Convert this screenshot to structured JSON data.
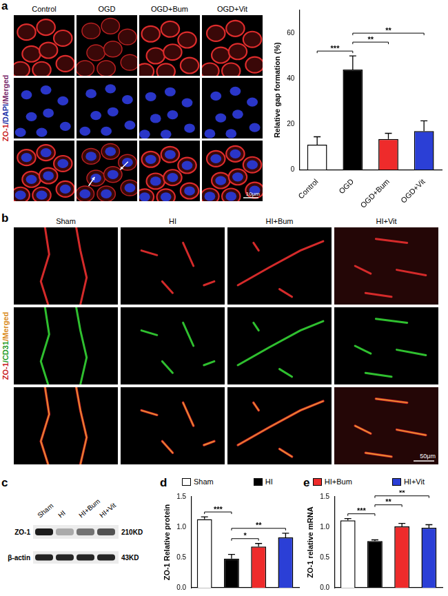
{
  "figure": {
    "panel_a": {
      "label": "a",
      "columns": [
        "Control",
        "OGD",
        "OGD+Bum",
        "OGD+Vit"
      ],
      "stain_label": [
        {
          "text": "ZO-1",
          "color": "#c8201e"
        },
        {
          "text": "/DAPI",
          "color": "#2233aa"
        },
        {
          "text": "/Merged",
          "color": "#7a2c6c"
        }
      ],
      "scale_bar": "10μm"
    },
    "panel_b": {
      "label": "b",
      "columns": [
        "Sham",
        "HI",
        "HI+Bum",
        "HI+Vit"
      ],
      "stain_label": [
        {
          "text": "ZO-1",
          "color": "#c8201e"
        },
        {
          "text": "/CD31",
          "color": "#1f9a1f"
        },
        {
          "text": "/Merged",
          "color": "#d98a20"
        }
      ],
      "scale_bar": "50μm"
    },
    "panel_c": {
      "label": "c",
      "lanes": [
        "Sham",
        "HI",
        "HI+Bum",
        "HI+Vit"
      ],
      "rows": [
        {
          "name": "ZO-1",
          "size": "210KD"
        },
        {
          "name": "β-actin",
          "size": "43KD"
        }
      ]
    },
    "panel_d": {
      "label": "d"
    },
    "panel_e": {
      "label": "e"
    },
    "legend": [
      {
        "name": "Sham",
        "color": "#ffffff"
      },
      {
        "name": "HI",
        "color": "#000000"
      },
      {
        "name": "HI+Bum",
        "color": "#ee2b2b"
      },
      {
        "name": "HI+Vit",
        "color": "#2b3fd6"
      }
    ]
  },
  "chart_data": [
    {
      "type": "bar",
      "y_label": "Relative gap formation (%)",
      "categories": [
        "Control",
        "OGD",
        "OGD+Bum",
        "OGD+Vit"
      ],
      "values": [
        11,
        44,
        13.5,
        17
      ],
      "errors": [
        3.5,
        6,
        2.5,
        4.5
      ],
      "colors": [
        "#ffffff",
        "#000000",
        "#ee2b2b",
        "#2b3fd6"
      ],
      "ylim": [
        0,
        70
      ],
      "yticks": [
        0,
        20,
        40,
        60
      ],
      "grid": false,
      "significance": [
        {
          "from": "Control",
          "to": "OGD",
          "label": "***"
        },
        {
          "from": "OGD",
          "to": "OGD+Bum",
          "label": "**"
        },
        {
          "from": "OGD",
          "to": "OGD+Vit",
          "label": "**"
        }
      ]
    },
    {
      "type": "bar",
      "y_label": "ZO-1 Relative protein",
      "categories": [
        "Sham",
        "HI",
        "HI+Bum",
        "HI+Vit"
      ],
      "values": [
        1.13,
        0.48,
        0.68,
        0.83
      ],
      "errors": [
        0.04,
        0.07,
        0.05,
        0.07
      ],
      "colors": [
        "#ffffff",
        "#000000",
        "#ee2b2b",
        "#2b3fd6"
      ],
      "ylim": [
        0,
        1.5
      ],
      "yticks": [
        {
          "value": 0,
          "label": "0.0"
        },
        0.5,
        {
          "value": 1,
          "label": "1.0"
        },
        1.5
      ],
      "grid": false,
      "tick_labels": "y",
      "significance": [
        {
          "from": "Sham",
          "to": "HI",
          "label": "***"
        },
        {
          "from": "HI",
          "to": "HI+Bum",
          "label": "*"
        },
        {
          "from": "HI",
          "to": "HI+Vit",
          "label": "**"
        }
      ]
    },
    {
      "type": "bar",
      "y_label": "ZO-1 relative mRNA",
      "categories": [
        "Sham",
        "HI",
        "HI+Bum",
        "HI+Vit"
      ],
      "values": [
        1.11,
        0.77,
        1.01,
        0.99
      ],
      "errors": [
        0.03,
        0.02,
        0.05,
        0.05
      ],
      "colors": [
        "#ffffff",
        "#000000",
        "#ee2b2b",
        "#2b3fd6"
      ],
      "ylim": [
        0,
        1.5
      ],
      "yticks": [
        {
          "value": 0,
          "label": "0.0"
        },
        0.5,
        {
          "value": 1,
          "label": "1.0"
        },
        1.5
      ],
      "grid": false,
      "tick_labels": "y",
      "significance": [
        {
          "from": "Sham",
          "to": "HI",
          "label": "***"
        },
        {
          "from": "HI",
          "to": "HI+Bum",
          "label": "**"
        },
        {
          "from": "HI",
          "to": "HI+Vit",
          "label": "**"
        }
      ]
    }
  ]
}
